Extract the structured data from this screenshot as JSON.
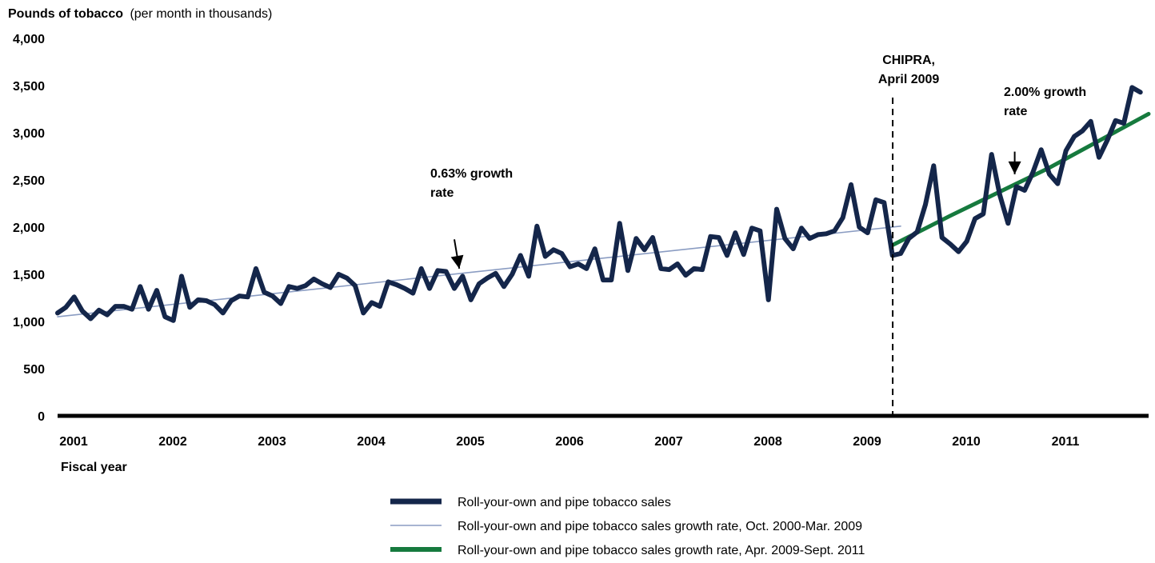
{
  "chart_data": {
    "type": "line",
    "ylabel": {
      "bold": "Pounds of tobacco",
      "normal": "(per month in thousands)"
    },
    "xlabel": "Fiscal year",
    "ylim": [
      0,
      4000
    ],
    "yticks": [
      "0",
      "500",
      "1,000",
      "1,500",
      "2,000",
      "2,500",
      "3,000",
      "3,500",
      "4,000"
    ],
    "ytick_values": [
      0,
      500,
      1000,
      1500,
      2000,
      2500,
      3000,
      3500,
      4000
    ],
    "xlim": [
      2001,
      2012
    ],
    "xticks": [
      "2001",
      "2002",
      "2003",
      "2004",
      "2005",
      "2006",
      "2007",
      "2008",
      "2009",
      "2010",
      "2011"
    ],
    "xtick_values": [
      2001,
      2002,
      2003,
      2004,
      2005,
      2006,
      2007,
      2008,
      2009,
      2010,
      2011
    ],
    "grid": false,
    "legend_position": "bottom-center",
    "series": [
      {
        "name": "Roll-your-own and pipe tobacco sales",
        "color": "#14264a",
        "style": "thick",
        "x": [
          2001.0,
          2001.083,
          2001.167,
          2001.25,
          2001.333,
          2001.417,
          2001.5,
          2001.583,
          2001.667,
          2001.75,
          2001.833,
          2001.917,
          2002.0,
          2002.083,
          2002.167,
          2002.25,
          2002.333,
          2002.417,
          2002.5,
          2002.583,
          2002.667,
          2002.75,
          2002.833,
          2002.917,
          2003.0,
          2003.083,
          2003.167,
          2003.25,
          2003.333,
          2003.417,
          2003.5,
          2003.583,
          2003.667,
          2003.75,
          2003.833,
          2003.917,
          2004.0,
          2004.083,
          2004.167,
          2004.25,
          2004.333,
          2004.417,
          2004.5,
          2004.583,
          2004.667,
          2004.75,
          2004.833,
          2004.917,
          2005.0,
          2005.083,
          2005.167,
          2005.25,
          2005.333,
          2005.417,
          2005.5,
          2005.583,
          2005.667,
          2005.75,
          2005.833,
          2005.917,
          2006.0,
          2006.083,
          2006.167,
          2006.25,
          2006.333,
          2006.417,
          2006.5,
          2006.583,
          2006.667,
          2006.75,
          2006.833,
          2006.917,
          2007.0,
          2007.083,
          2007.167,
          2007.25,
          2007.333,
          2007.417,
          2007.5,
          2007.583,
          2007.667,
          2007.75,
          2007.833,
          2007.917,
          2008.0,
          2008.083,
          2008.167,
          2008.25,
          2008.333,
          2008.417,
          2008.5,
          2008.583,
          2008.667,
          2008.75,
          2008.833,
          2008.917,
          2009.0,
          2009.083,
          2009.167,
          2009.25,
          2009.333,
          2009.417,
          2009.5,
          2009.583,
          2009.667,
          2009.75,
          2009.833,
          2009.917,
          2010.0,
          2010.083,
          2010.167,
          2010.25,
          2010.333,
          2010.417,
          2010.5,
          2010.583,
          2010.667,
          2010.75,
          2010.833,
          2010.917,
          2011.0,
          2011.083,
          2011.167,
          2011.25,
          2011.333,
          2011.417,
          2011.5,
          2011.583,
          2011.667,
          2011.75,
          2011.833,
          2011.917
        ],
        "y": [
          1090,
          1150,
          1260,
          1110,
          1030,
          1120,
          1070,
          1160,
          1160,
          1130,
          1370,
          1130,
          1330,
          1050,
          1010,
          1480,
          1150,
          1230,
          1220,
          1180,
          1090,
          1220,
          1270,
          1260,
          1560,
          1310,
          1270,
          1190,
          1370,
          1350,
          1380,
          1450,
          1400,
          1360,
          1500,
          1460,
          1380,
          1090,
          1200,
          1160,
          1420,
          1390,
          1350,
          1300,
          1560,
          1350,
          1540,
          1530,
          1350,
          1480,
          1230,
          1400,
          1460,
          1510,
          1370,
          1500,
          1700,
          1480,
          2010,
          1690,
          1760,
          1720,
          1580,
          1610,
          1560,
          1770,
          1440,
          1440,
          2040,
          1540,
          1880,
          1760,
          1890,
          1560,
          1550,
          1610,
          1490,
          1560,
          1550,
          1900,
          1890,
          1700,
          1940,
          1710,
          1990,
          1960,
          1230,
          2190,
          1880,
          1770,
          1990,
          1880,
          1920,
          1930,
          1960,
          2100,
          2450,
          2000,
          1940,
          2290,
          2260,
          1700,
          1720,
          1880,
          1950,
          2240,
          2650,
          1890,
          1820,
          1740,
          1850,
          2090,
          2140,
          2770,
          2340,
          2040,
          2430,
          2390,
          2580,
          2820,
          2560,
          2460,
          2810,
          2960,
          3020,
          3120,
          2740,
          2920,
          3130,
          3100,
          3480,
          3430
        ]
      },
      {
        "name": "Roll-your-own and pipe tobacco sales growth rate, Oct. 2000-Mar. 2009",
        "color": "#8a9cc2",
        "style": "thin",
        "x": [
          2001.0,
          2009.5
        ],
        "y": [
          1050,
          2010
        ]
      },
      {
        "name": "Roll-your-own and pipe tobacco sales growth rate, Apr. 2009-Sept. 2011",
        "color": "#167a3e",
        "style": "medium",
        "x": [
          2009.4,
          2010.0,
          2011.0,
          2012.0
        ],
        "y": [
          1800,
          2120,
          2630,
          3200
        ]
      }
    ],
    "annotations": [
      {
        "lines": [
          "0.63% growth",
          "rate"
        ],
        "arrow_from": [
          2005.0,
          1870
        ],
        "arrow_to": [
          2005.05,
          1560
        ]
      },
      {
        "lines": [
          "2.00% growth",
          "rate"
        ],
        "arrow_from": [
          2010.65,
          2800
        ],
        "arrow_to": [
          2010.65,
          2560
        ]
      },
      {
        "lines": [
          "CHIPRA,",
          "April 2009"
        ],
        "vline_x": 2009.42
      }
    ]
  }
}
